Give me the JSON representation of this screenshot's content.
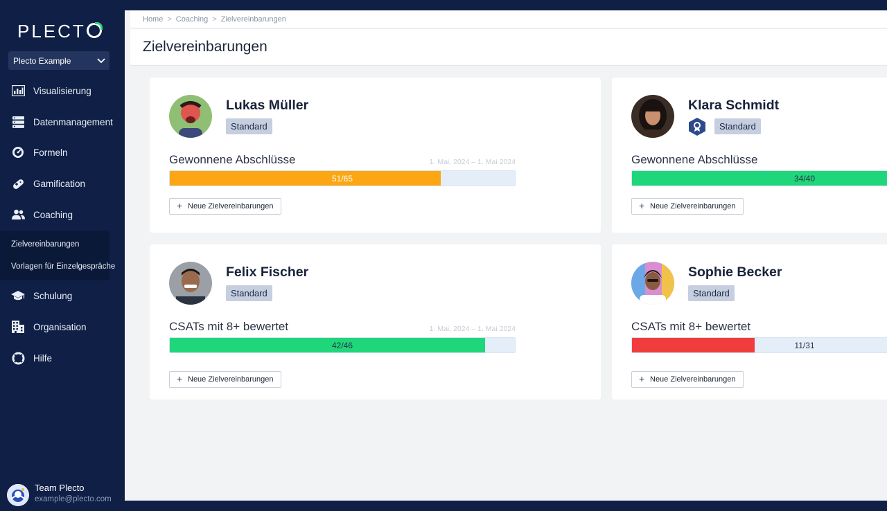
{
  "sidebar": {
    "logo": "PLECT",
    "org_select": "Plecto Example",
    "nav": [
      {
        "label": "Visualisierung",
        "icon": "bar-chart-icon"
      },
      {
        "label": "Datenmanagement",
        "icon": "database-icon"
      },
      {
        "label": "Formeln",
        "icon": "gauge-icon"
      },
      {
        "label": "Gamification",
        "icon": "gamepad-icon"
      },
      {
        "label": "Coaching",
        "icon": "users-icon"
      },
      {
        "label": "Schulung",
        "icon": "graduation-cap-icon"
      },
      {
        "label": "Organisation",
        "icon": "building-icon"
      },
      {
        "label": "Hilfe",
        "icon": "lifebuoy-icon"
      }
    ],
    "subnav": [
      "Zielvereinbarungen",
      "Vorlagen für Einzelgespräche"
    ],
    "user": {
      "name": "Team Plecto",
      "email": "example@plecto.com"
    }
  },
  "breadcrumb": {
    "items": [
      "Home",
      "Coaching",
      "Zielvereinbarungen"
    ],
    "separator": ">"
  },
  "page": {
    "title": "Zielvereinbarungen"
  },
  "cards": [
    {
      "name": "Lukas Müller",
      "badge": "Standard",
      "kpi": "Gewonnene Abschlüsse",
      "date": "1. Mai, 2024 – 1. Mai 2024",
      "value": 51,
      "target": 65,
      "progress_label": "51/65",
      "color": "#fba612",
      "button": "Neue Zielvereinbarungen"
    },
    {
      "name": "Klara Schmidt",
      "badge": "Standard",
      "kpi": "Gewonnene Abschlüsse",
      "date": "",
      "value": 34,
      "target": 40,
      "progress_label": "34/40",
      "color": "#1fd67a",
      "button": "Neue Zielvereinbarungen"
    },
    {
      "name": "Felix Fischer",
      "badge": "Standard",
      "kpi": "CSATs mit 8+ bewertet",
      "date": "1. Mai, 2024 – 1. Mai 2024",
      "value": 42,
      "target": 46,
      "progress_label": "42/46",
      "color": "#1fd67a",
      "button": "Neue Zielvereinbarungen"
    },
    {
      "name": "Sophie Becker",
      "badge": "Standard",
      "kpi": "CSATs mit 8+ bewertet",
      "date": "",
      "value": 11,
      "target": 31,
      "progress_label": "11/31",
      "color": "#f03c3c",
      "button": "Neue Zielvereinbarungen"
    }
  ],
  "colors": {
    "sidebar_bg": "#0f1f45",
    "accent_green": "#2ed47a",
    "main_bg": "#f2f3f5"
  }
}
